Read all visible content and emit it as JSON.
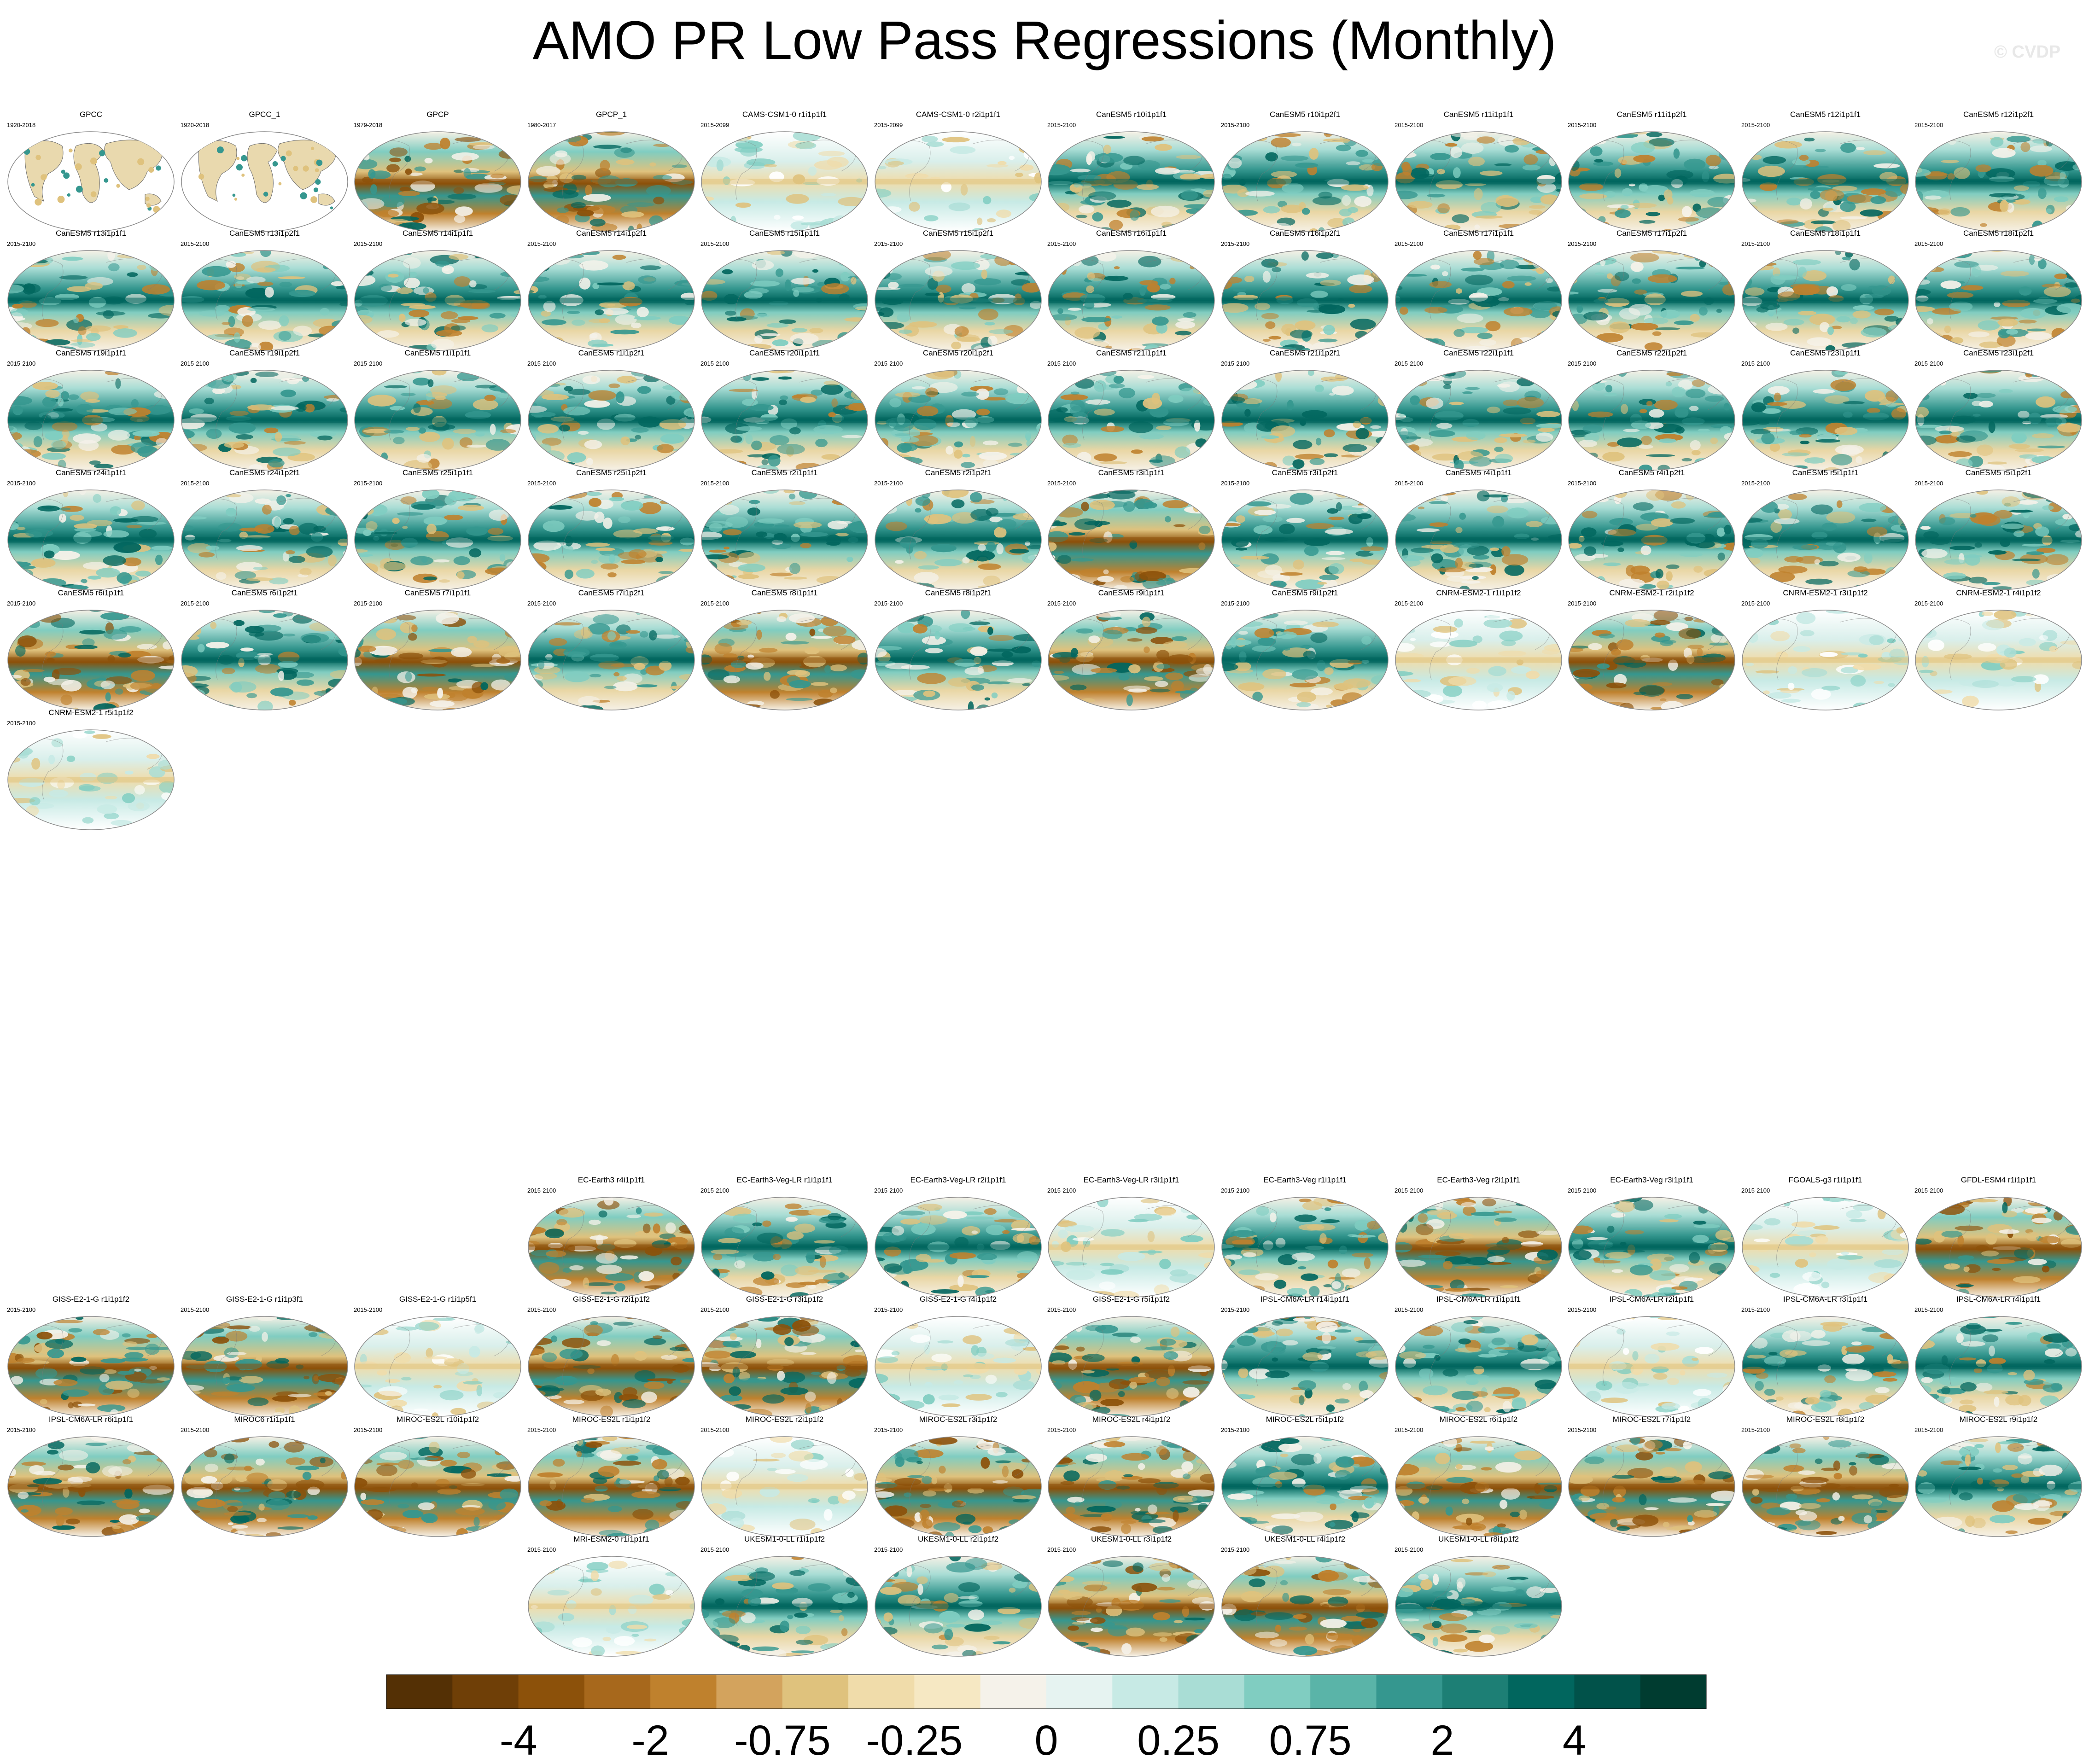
{
  "title": "AMO PR Low Pass Regressions (Monthly)",
  "watermark": "© CVDP",
  "chart_data": {
    "type": "heatmap",
    "title": "AMO PR Low Pass Regressions (Monthly)",
    "projection": "global map panels (Robinson-like)",
    "panels": [
      {
        "name": "GPCC",
        "years": "1920-2018",
        "style": "observed-land"
      },
      {
        "name": "GPCC_1",
        "years": "1920-2018",
        "style": "observed-land"
      },
      {
        "name": "GPCP",
        "years": "1979-2018",
        "style": "brown"
      },
      {
        "name": "GPCP_1",
        "years": "1980-2017",
        "style": "brown"
      },
      {
        "name": "CAMS-CSM1-0 r1i1p1f1",
        "years": "2015-2099",
        "style": "pale"
      },
      {
        "name": "CAMS-CSM1-0 r2i1p1f1",
        "years": "2015-2099",
        "style": "pale"
      },
      {
        "name": "CanESM5 r10i1p1f1",
        "years": "2015-2100",
        "style": "teal"
      },
      {
        "name": "CanESM5 r10i1p2f1",
        "years": "2015-2100",
        "style": "teal"
      },
      {
        "name": "CanESM5 r11i1p1f1",
        "years": "2015-2100",
        "style": "teal"
      },
      {
        "name": "CanESM5 r11i1p2f1",
        "years": "2015-2100",
        "style": "teal"
      },
      {
        "name": "CanESM5 r12i1p1f1",
        "years": "2015-2100",
        "style": "teal"
      },
      {
        "name": "CanESM5 r12i1p2f1",
        "years": "2015-2100",
        "style": "teal"
      },
      {
        "name": "CanESM5 r13i1p1f1",
        "years": "2015-2100",
        "style": "teal"
      },
      {
        "name": "CanESM5 r13i1p2f1",
        "years": "2015-2100",
        "style": "teal"
      },
      {
        "name": "CanESM5 r14i1p1f1",
        "years": "2015-2100",
        "style": "teal"
      },
      {
        "name": "CanESM5 r14i1p2f1",
        "years": "2015-2100",
        "style": "teal"
      },
      {
        "name": "CanESM5 r15i1p1f1",
        "years": "2015-2100",
        "style": "teal"
      },
      {
        "name": "CanESM5 r15i1p2f1",
        "years": "2015-2100",
        "style": "teal"
      },
      {
        "name": "CanESM5 r16i1p1f1",
        "years": "2015-2100",
        "style": "teal"
      },
      {
        "name": "CanESM5 r16i1p2f1",
        "years": "2015-2100",
        "style": "teal"
      },
      {
        "name": "CanESM5 r17i1p1f1",
        "years": "2015-2100",
        "style": "teal"
      },
      {
        "name": "CanESM5 r17i1p2f1",
        "years": "2015-2100",
        "style": "teal"
      },
      {
        "name": "CanESM5 r18i1p1f1",
        "years": "2015-2100",
        "style": "teal"
      },
      {
        "name": "CanESM5 r18i1p2f1",
        "years": "2015-2100",
        "style": "teal"
      },
      {
        "name": "CanESM5 r19i1p1f1",
        "years": "2015-2100",
        "style": "teal"
      },
      {
        "name": "CanESM5 r19i1p2f1",
        "years": "2015-2100",
        "style": "teal"
      },
      {
        "name": "CanESM5 r1i1p1f1",
        "years": "2015-2100",
        "style": "teal"
      },
      {
        "name": "CanESM5 r1i1p2f1",
        "years": "2015-2100",
        "style": "teal"
      },
      {
        "name": "CanESM5 r20i1p1f1",
        "years": "2015-2100",
        "style": "teal"
      },
      {
        "name": "CanESM5 r20i1p2f1",
        "years": "2015-2100",
        "style": "teal"
      },
      {
        "name": "CanESM5 r21i1p1f1",
        "years": "2015-2100",
        "style": "teal"
      },
      {
        "name": "CanESM5 r21i1p2f1",
        "years": "2015-2100",
        "style": "teal"
      },
      {
        "name": "CanESM5 r22i1p1f1",
        "years": "2015-2100",
        "style": "teal"
      },
      {
        "name": "CanESM5 r22i1p2f1",
        "years": "2015-2100",
        "style": "teal"
      },
      {
        "name": "CanESM5 r23i1p1f1",
        "years": "2015-2100",
        "style": "teal"
      },
      {
        "name": "CanESM5 r23i1p2f1",
        "years": "2015-2100",
        "style": "teal"
      },
      {
        "name": "CanESM5 r24i1p1f1",
        "years": "2015-2100",
        "style": "teal"
      },
      {
        "name": "CanESM5 r24i1p2f1",
        "years": "2015-2100",
        "style": "teal"
      },
      {
        "name": "CanESM5 r25i1p1f1",
        "years": "2015-2100",
        "style": "teal"
      },
      {
        "name": "CanESM5 r25i1p2f1",
        "years": "2015-2100",
        "style": "teal"
      },
      {
        "name": "CanESM5 r2i1p1f1",
        "years": "2015-2100",
        "style": "teal"
      },
      {
        "name": "CanESM5 r2i1p2f1",
        "years": "2015-2100",
        "style": "teal"
      },
      {
        "name": "CanESM5 r3i1p1f1",
        "years": "2015-2100",
        "style": "brown"
      },
      {
        "name": "CanESM5 r3i1p2f1",
        "years": "2015-2100",
        "style": "teal"
      },
      {
        "name": "CanESM5 r4i1p1f1",
        "years": "2015-2100",
        "style": "teal"
      },
      {
        "name": "CanESM5 r4i1p2f1",
        "years": "2015-2100",
        "style": "teal"
      },
      {
        "name": "CanESM5 r5i1p1f1",
        "years": "2015-2100",
        "style": "teal"
      },
      {
        "name": "CanESM5 r5i1p2f1",
        "years": "2015-2100",
        "style": "teal"
      },
      {
        "name": "CanESM5 r6i1p1f1",
        "years": "2015-2100",
        "style": "brown"
      },
      {
        "name": "CanESM5 r6i1p2f1",
        "years": "2015-2100",
        "style": "teal"
      },
      {
        "name": "CanESM5 r7i1p1f1",
        "years": "2015-2100",
        "style": "brown"
      },
      {
        "name": "CanESM5 r7i1p2f1",
        "years": "2015-2100",
        "style": "teal"
      },
      {
        "name": "CanESM5 r8i1p1f1",
        "years": "2015-2100",
        "style": "brown"
      },
      {
        "name": "CanESM5 r8i1p2f1",
        "years": "2015-2100",
        "style": "teal"
      },
      {
        "name": "CanESM5 r9i1p1f1",
        "years": "2015-2100",
        "style": "brown"
      },
      {
        "name": "CanESM5 r9i1p2f1",
        "years": "2015-2100",
        "style": "teal"
      },
      {
        "name": "CNRM-ESM2-1 r1i1p1f2",
        "years": "2015-2100",
        "style": "pale"
      },
      {
        "name": "CNRM-ESM2-1 r2i1p1f2",
        "years": "2015-2100",
        "style": "brown"
      },
      {
        "name": "CNRM-ESM2-1 r3i1p1f2",
        "years": "2015-2100",
        "style": "pale"
      },
      {
        "name": "CNRM-ESM2-1 r4i1p1f2",
        "years": "2015-2100",
        "style": "pale"
      },
      {
        "name": "CNRM-ESM2-1 r5i1p1f2",
        "years": "2015-2100",
        "style": "pale"
      },
      {
        "name": "EC-Earth3 r4i1p1f1",
        "years": "2015-2100",
        "style": "brown"
      },
      {
        "name": "EC-Earth3-Veg-LR r1i1p1f1",
        "years": "2015-2100",
        "style": "teal"
      },
      {
        "name": "EC-Earth3-Veg-LR r2i1p1f1",
        "years": "2015-2100",
        "style": "teal"
      },
      {
        "name": "EC-Earth3-Veg-LR r3i1p1f1",
        "years": "2015-2100",
        "style": "pale"
      },
      {
        "name": "EC-Earth3-Veg r1i1p1f1",
        "years": "2015-2100",
        "style": "teal"
      },
      {
        "name": "EC-Earth3-Veg r2i1p1f1",
        "years": "2015-2100",
        "style": "brown"
      },
      {
        "name": "EC-Earth3-Veg r3i1p1f1",
        "years": "2015-2100",
        "style": "teal"
      },
      {
        "name": "FGOALS-g3 r1i1p1f1",
        "years": "2015-2100",
        "style": "pale"
      },
      {
        "name": "GFDL-ESM4 r1i1p1f1",
        "years": "2015-2100",
        "style": "brown"
      },
      {
        "name": "GISS-E2-1-G r1i1p1f2",
        "years": "2015-2100",
        "style": "brown"
      },
      {
        "name": "GISS-E2-1-G r1i1p3f1",
        "years": "2015-2100",
        "style": "brown"
      },
      {
        "name": "GISS-E2-1-G r1i1p5f1",
        "years": "2015-2100",
        "style": "pale"
      },
      {
        "name": "GISS-E2-1-G r2i1p1f2",
        "years": "2015-2100",
        "style": "brown"
      },
      {
        "name": "GISS-E2-1-G r3i1p1f2",
        "years": "2015-2100",
        "style": "brown"
      },
      {
        "name": "GISS-E2-1-G r4i1p1f2",
        "years": "2015-2100",
        "style": "pale"
      },
      {
        "name": "GISS-E2-1-G r5i1p1f2",
        "years": "2015-2100",
        "style": "brown"
      },
      {
        "name": "IPSL-CM6A-LR r14i1p1f1",
        "years": "2015-2100",
        "style": "teal"
      },
      {
        "name": "IPSL-CM6A-LR r1i1p1f1",
        "years": "2015-2100",
        "style": "teal"
      },
      {
        "name": "IPSL-CM6A-LR r2i1p1f1",
        "years": "2015-2100",
        "style": "pale"
      },
      {
        "name": "IPSL-CM6A-LR r3i1p1f1",
        "years": "2015-2100",
        "style": "teal"
      },
      {
        "name": "IPSL-CM6A-LR r4i1p1f1",
        "years": "2015-2100",
        "style": "teal"
      },
      {
        "name": "IPSL-CM6A-LR r6i1p1f1",
        "years": "2015-2100",
        "style": "brown"
      },
      {
        "name": "MIROC6 r1i1p1f1",
        "years": "2015-2100",
        "style": "brown"
      },
      {
        "name": "MIROC-ES2L r10i1p1f2",
        "years": "2015-2100",
        "style": "brown"
      },
      {
        "name": "MIROC-ES2L r1i1p1f2",
        "years": "2015-2100",
        "style": "brown"
      },
      {
        "name": "MIROC-ES2L r2i1p1f2",
        "years": "2015-2100",
        "style": "pale"
      },
      {
        "name": "MIROC-ES2L r3i1p1f2",
        "years": "2015-2100",
        "style": "brown"
      },
      {
        "name": "MIROC-ES2L r4i1p1f2",
        "years": "2015-2100",
        "style": "brown"
      },
      {
        "name": "MIROC-ES2L r5i1p1f2",
        "years": "2015-2100",
        "style": "teal"
      },
      {
        "name": "MIROC-ES2L r6i1p1f2",
        "years": "2015-2100",
        "style": "brown"
      },
      {
        "name": "MIROC-ES2L r7i1p1f2",
        "years": "2015-2100",
        "style": "brown"
      },
      {
        "name": "MIROC-ES2L r8i1p1f2",
        "years": "2015-2100",
        "style": "brown"
      },
      {
        "name": "MIROC-ES2L r9i1p1f2",
        "years": "2015-2100",
        "style": "teal"
      },
      {
        "name": "MRI-ESM2-0 r1i1p1f1",
        "years": "2015-2100",
        "style": "pale"
      },
      {
        "name": "UKESM1-0-LL r1i1p1f2",
        "years": "2015-2100",
        "style": "teal"
      },
      {
        "name": "UKESM1-0-LL r2i1p1f2",
        "years": "2015-2100",
        "style": "teal"
      },
      {
        "name": "UKESM1-0-LL r3i1p1f2",
        "years": "2015-2100",
        "style": "brown"
      },
      {
        "name": "UKESM1-0-LL r4i1p1f2",
        "years": "2015-2100",
        "style": "brown"
      },
      {
        "name": "UKESM1-0-LL r8i1p1f2",
        "years": "2015-2100",
        "style": "teal"
      }
    ],
    "colorbar": {
      "colors": [
        "#543005",
        "#6f3f07",
        "#8c510a",
        "#a7681c",
        "#bf812d",
        "#d3a35d",
        "#dfc27d",
        "#f0dcaa",
        "#f6e8c3",
        "#f5f2ea",
        "#e6f3f1",
        "#c7eae5",
        "#a9ddd5",
        "#80cdc1",
        "#5ab4a8",
        "#35978f",
        "#1d7f75",
        "#01665e",
        "#01524a",
        "#003c30"
      ],
      "tick_labels": [
        "-4",
        "-2",
        "-0.75",
        "-0.25",
        "0",
        "0.25",
        "0.75",
        "2",
        "4"
      ],
      "tick_boundaries": [
        2,
        4,
        6,
        8,
        10,
        12,
        14,
        16,
        18
      ]
    }
  }
}
